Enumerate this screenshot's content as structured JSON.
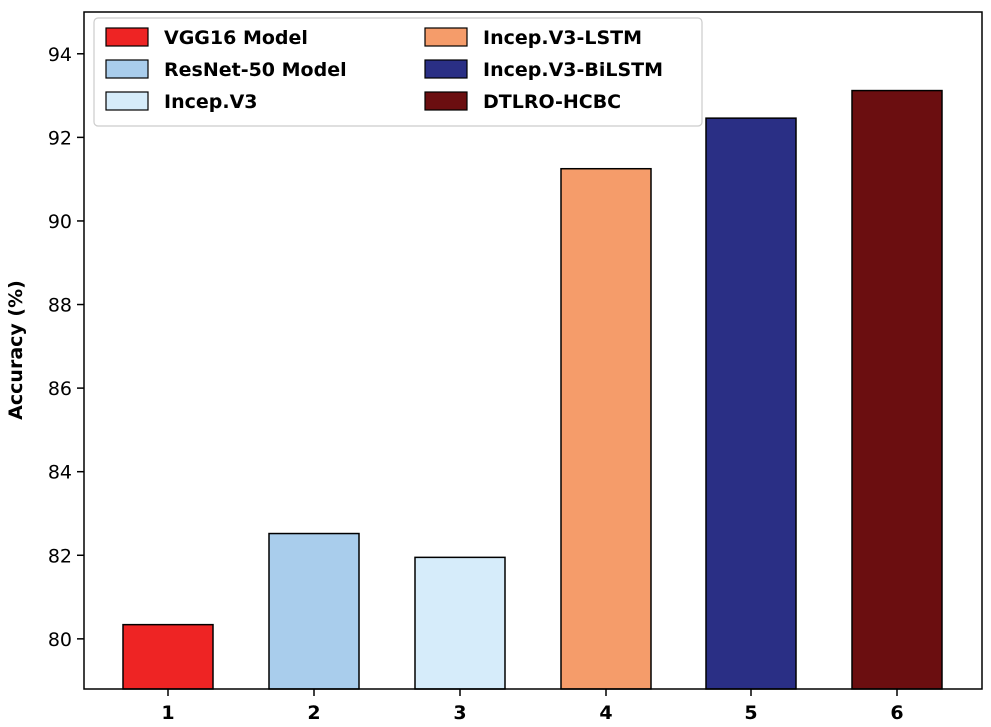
{
  "chart_data": {
    "type": "bar",
    "title": "",
    "xlabel": "",
    "ylabel": "Accuracy (%)",
    "categories": [
      "1",
      "2",
      "3",
      "4",
      "5",
      "6"
    ],
    "values": [
      80.34,
      82.52,
      81.95,
      91.25,
      92.46,
      93.12
    ],
    "series_names": [
      "VGG16 Model",
      "ResNet-50 Model",
      "Incep.V3",
      "Incep.V3-LSTM",
      "Incep.V3-BiLSTM",
      "DTLRO-HCBC"
    ],
    "colors": [
      "#ee2424",
      "#a9cdec",
      "#d6ecfa",
      "#f59c6a",
      "#2a2f85",
      "#6b0e10"
    ],
    "ylim": [
      78.8,
      95.0
    ],
    "yticks": [
      80,
      82,
      84,
      86,
      88,
      90,
      92,
      94
    ],
    "legend_position": "top-left",
    "grid": false
  }
}
